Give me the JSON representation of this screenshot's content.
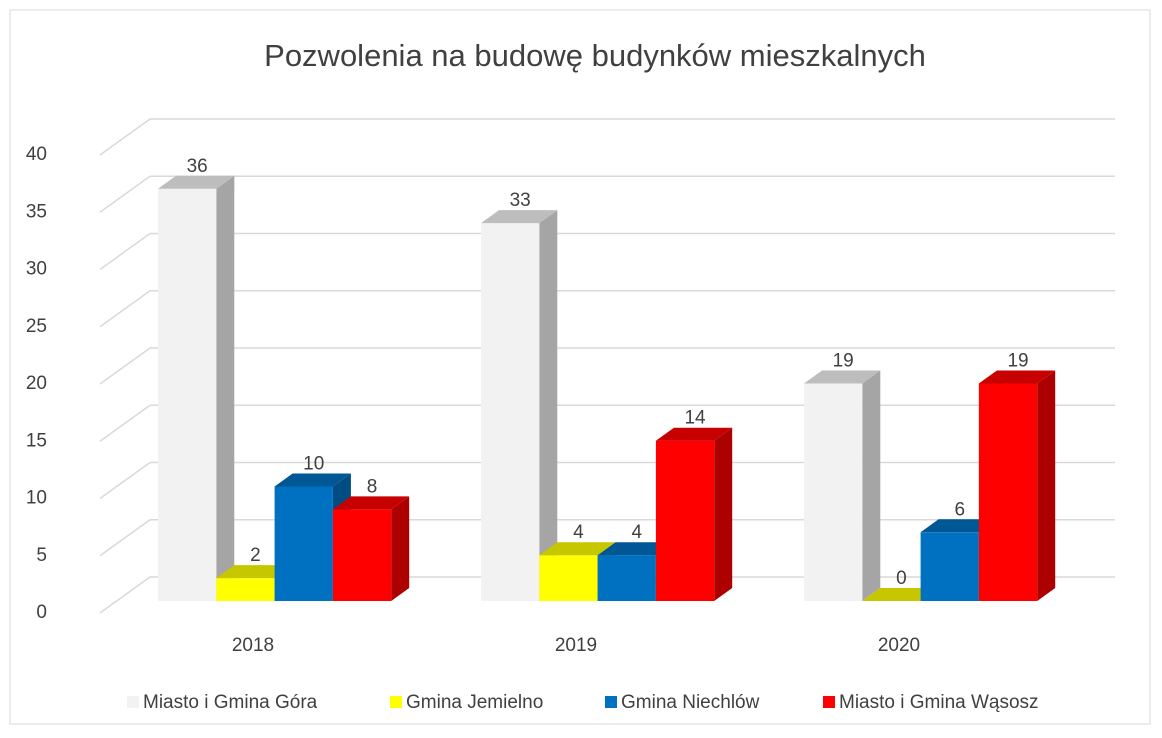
{
  "chart_data": {
    "type": "bar3d",
    "title": "Pozwolenia na budowę budynków mieszkalnych",
    "categories": [
      "2018",
      "2019",
      "2020"
    ],
    "series": [
      {
        "name": "Miasto i Gmina Góra",
        "color": "#f2f2f2",
        "values": [
          36,
          33,
          19
        ]
      },
      {
        "name": "Gmina Jemielno",
        "color": "#ffff00",
        "values": [
          2,
          4,
          0
        ]
      },
      {
        "name": "Gmina Niechlów",
        "color": "#0070c0",
        "values": [
          10,
          4,
          6
        ]
      },
      {
        "name": "Miasto i Gmina Wąsosz",
        "color": "#ff0000",
        "values": [
          8,
          14,
          19
        ]
      }
    ],
    "ylim": [
      0,
      40
    ],
    "yticks": [
      0,
      5,
      10,
      15,
      20,
      25,
      30,
      35,
      40
    ],
    "grid": true,
    "legend": "bottom"
  }
}
